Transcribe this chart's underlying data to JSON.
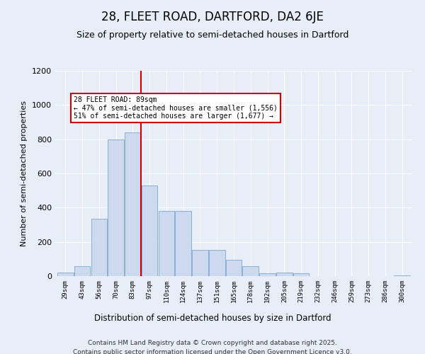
{
  "title": "28, FLEET ROAD, DARTFORD, DA2 6JE",
  "subtitle": "Size of property relative to semi-detached houses in Dartford",
  "xlabel": "Distribution of semi-detached houses by size in Dartford",
  "ylabel": "Number of semi-detached properties",
  "categories": [
    "29sqm",
    "43sqm",
    "56sqm",
    "70sqm",
    "83sqm",
    "97sqm",
    "110sqm",
    "124sqm",
    "137sqm",
    "151sqm",
    "165sqm",
    "178sqm",
    "192sqm",
    "205sqm",
    "219sqm",
    "232sqm",
    "246sqm",
    "259sqm",
    "273sqm",
    "286sqm",
    "300sqm"
  ],
  "values": [
    20,
    60,
    335,
    800,
    840,
    530,
    380,
    380,
    155,
    155,
    95,
    60,
    15,
    20,
    15,
    0,
    0,
    0,
    0,
    0,
    5
  ],
  "bar_color": "#ccd9ee",
  "bar_edge_color": "#7fa8cc",
  "vline_color": "#cc0000",
  "vline_x_index": 4.5,
  "annotation_title": "28 FLEET ROAD: 89sqm",
  "annotation_line1": "← 47% of semi-detached houses are smaller (1,556)",
  "annotation_line2": "51% of semi-detached houses are larger (1,677) →",
  "footer_line1": "Contains HM Land Registry data © Crown copyright and database right 2025.",
  "footer_line2": "Contains public sector information licensed under the Open Government Licence v3.0.",
  "bg_color": "#e8eef8",
  "plot_bg_color": "#e8eef8",
  "ylim": [
    0,
    1200
  ],
  "yticks": [
    0,
    200,
    400,
    600,
    800,
    1000,
    1200
  ],
  "title_fontsize": 12,
  "subtitle_fontsize": 9,
  "annotation_box_color": "#ffffff",
  "annotation_box_edge": "#cc0000"
}
